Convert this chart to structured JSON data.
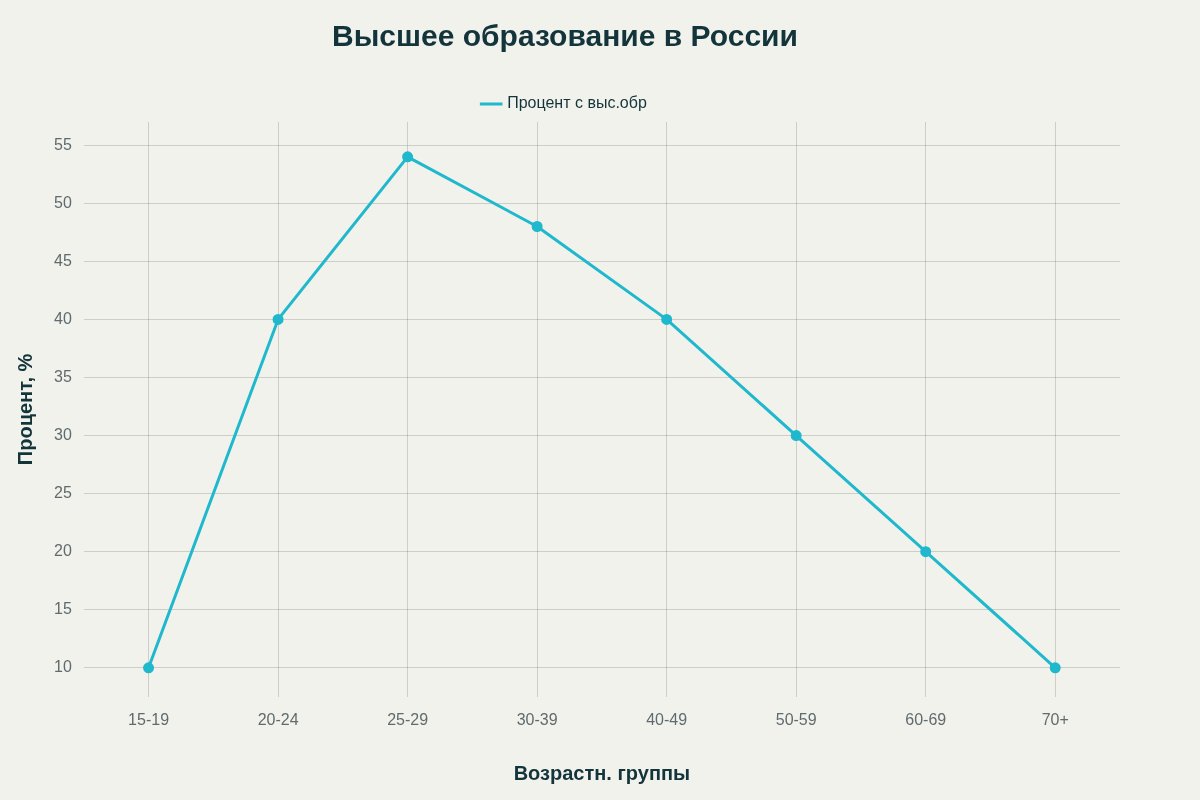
{
  "chart_data": {
    "type": "line",
    "title": "Высшее образование в России",
    "xlabel": "Возрастн. группы",
    "ylabel": "Процент, %",
    "categories": [
      "15-19",
      "20-24",
      "25-29",
      "30-39",
      "40-49",
      "50-59",
      "60-69",
      "70+"
    ],
    "series": [
      {
        "name": "Процент с выс.обр",
        "color": "#1fb8cd",
        "values": [
          10,
          40,
          54,
          48,
          40,
          30,
          20,
          10
        ]
      }
    ],
    "ylim": [
      7.5,
      57
    ],
    "yticks": [
      10,
      15,
      20,
      25,
      30,
      35,
      40,
      45,
      50,
      55
    ],
    "grid": true,
    "legend": "top",
    "marker": "circle",
    "line_style": "solid"
  }
}
